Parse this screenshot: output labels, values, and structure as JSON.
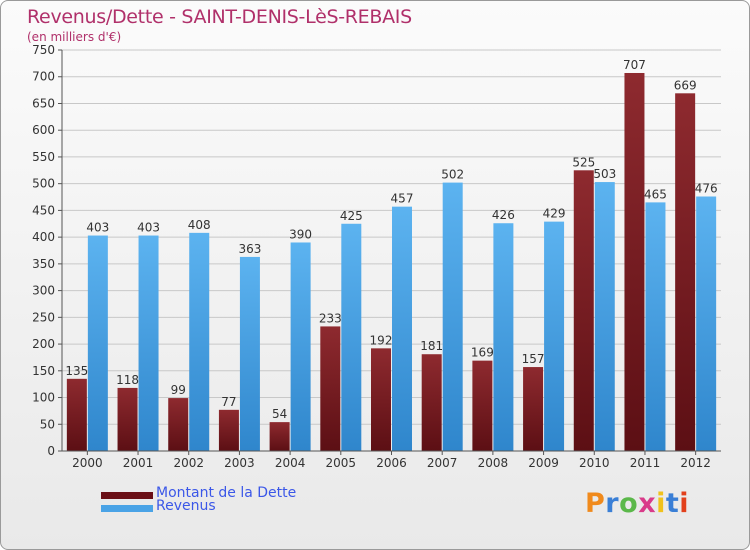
{
  "title": "Revenus/Dette - SAINT-DENIS-LèS-REBAIS",
  "subtitle": "(en milliers d'€)",
  "logo": "Proxiti",
  "logo_colors": [
    "#f08a1c",
    "#3a7fd6",
    "#5bb84a",
    "#d93b8a",
    "#f0c21c",
    "#3a7fd6",
    "#e2401c"
  ],
  "chart_data": {
    "type": "bar",
    "title": "Revenus/Dette - SAINT-DENIS-LèS-REBAIS",
    "subtitle": "(en milliers d'€)",
    "categories": [
      "2000",
      "2001",
      "2002",
      "2003",
      "2004",
      "2005",
      "2006",
      "2007",
      "2008",
      "2009",
      "2010",
      "2011",
      "2012"
    ],
    "series": [
      {
        "name": "Montant de la Dette",
        "color": "#7a1e24",
        "values": [
          135,
          118,
          99,
          77,
          54,
          233,
          192,
          181,
          169,
          157,
          525,
          707,
          669
        ]
      },
      {
        "name": "Revenus",
        "color": "#4aa3e6",
        "values": [
          403,
          403,
          408,
          363,
          390,
          425,
          457,
          502,
          426,
          429,
          503,
          465,
          476
        ]
      }
    ],
    "ylim": [
      0,
      750
    ],
    "yticks": [
      0,
      50,
      100,
      150,
      200,
      250,
      300,
      350,
      400,
      450,
      500,
      550,
      600,
      650,
      700,
      750
    ],
    "grid": true,
    "legend": "bottom-left"
  }
}
